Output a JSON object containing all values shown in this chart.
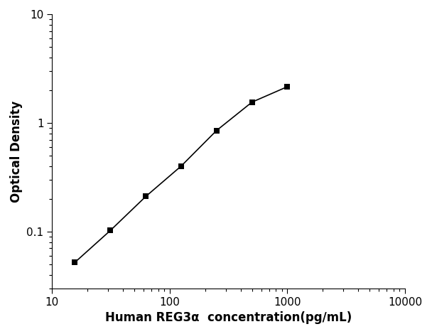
{
  "x_data": [
    15.6,
    31.2,
    62.5,
    125,
    250,
    500,
    1000
  ],
  "y_data": [
    0.052,
    0.102,
    0.21,
    0.4,
    0.85,
    1.55,
    2.15
  ],
  "xlabel": "Human REG3α  concentration(pg/mL)",
  "ylabel": "Optical Density",
  "xlim": [
    10,
    10000
  ],
  "ylim": [
    0.03,
    10
  ],
  "xticks": [
    10,
    100,
    1000,
    10000
  ],
  "yticks": [
    0.1,
    1,
    10
  ],
  "marker": "s",
  "marker_color": "black",
  "marker_size": 6,
  "line_color": "black",
  "line_width": 1.2,
  "background_color": "#ffffff",
  "xlabel_fontsize": 12,
  "ylabel_fontsize": 12,
  "tick_fontsize": 11,
  "curve_xmax": 1500
}
